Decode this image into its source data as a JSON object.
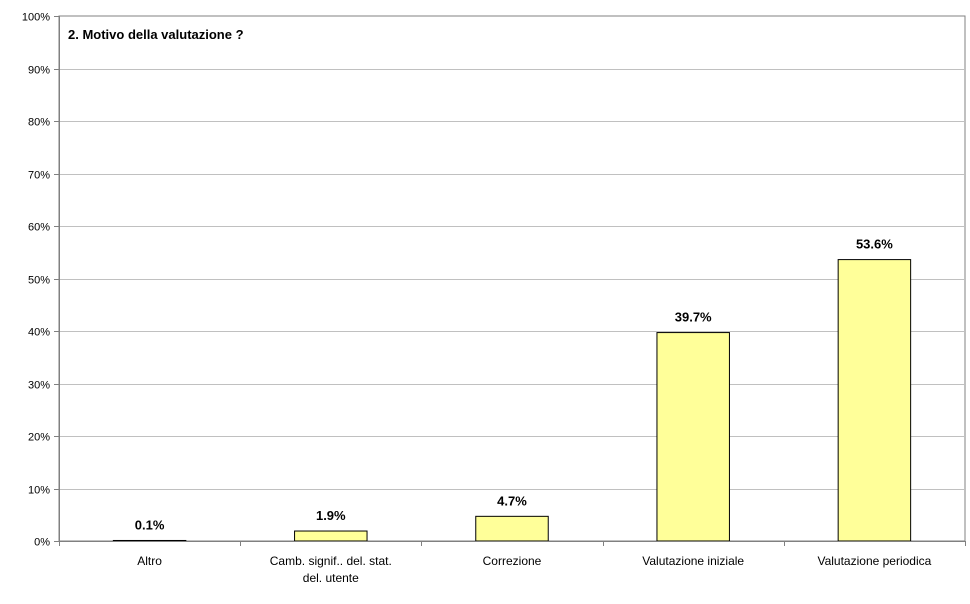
{
  "chart_data": {
    "type": "bar",
    "title": "2. Motivo della valutazione ?",
    "xlabel": "",
    "ylabel": "",
    "ylim": [
      0,
      100
    ],
    "ytick_step": 10,
    "ytick_labels": [
      "0%",
      "10%",
      "20%",
      "30%",
      "40%",
      "50%",
      "60%",
      "70%",
      "80%",
      "90%",
      "100%"
    ],
    "grid": true,
    "legend": "none",
    "categories": [
      "Altro",
      "Camb. signif.. del. stat. del. utente",
      "Correzione",
      "Valutazione iniziale",
      "Valutazione periodica"
    ],
    "values": [
      0.1,
      1.9,
      4.7,
      39.7,
      53.6
    ],
    "value_labels": [
      "0.1%",
      "1.9%",
      "4.7%",
      "39.7%",
      "53.6%"
    ],
    "colors": {
      "bar_fill": "#FFFF99",
      "bar_stroke": "#000000",
      "grid": "#C0C0C0",
      "axis": "#808080"
    }
  }
}
